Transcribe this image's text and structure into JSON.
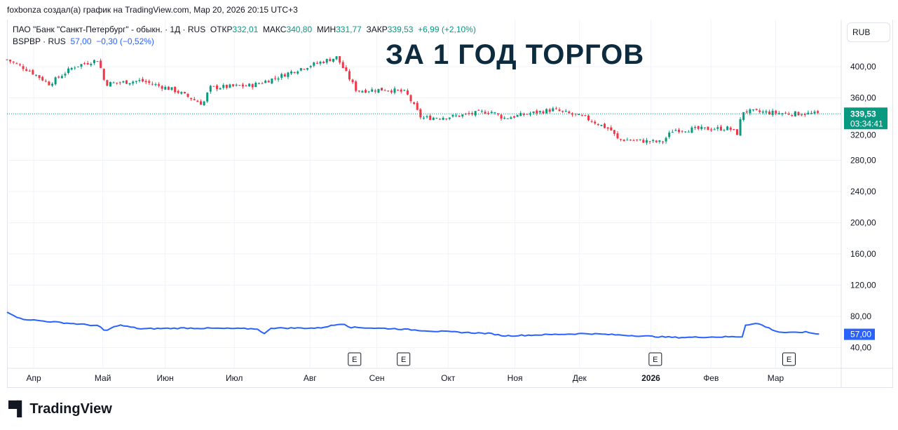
{
  "credit": "foxbonza создал(а) график на TradingView.com, Мар 20, 2026 20:15 UTC+3",
  "legend": {
    "name": "ПАО \"Банк \"Санкт-Петербург\" - обыкн. · 1Д · RUS",
    "open_label": "ОТКР",
    "open": "332,01",
    "high_label": "МАКС",
    "high": "340,80",
    "low_label": "МИН",
    "low": "331,77",
    "close_label": "ЗАКР",
    "close": "339,53",
    "change": "+6,99 (+2,10%)",
    "second_name": "BSPBP · RUS",
    "second_value": "57,00",
    "second_change": "−0,30 (−0,52%)"
  },
  "overlay_title": "ЗА 1 ГОД ТОРГОВ",
  "currency": "RUB",
  "price_tag": "339,53",
  "countdown": "03:34:41",
  "line_tag": "57,00",
  "logo": "TradingView",
  "colors": {
    "up": "#089981",
    "down": "#f23645",
    "line": "#2962ff"
  },
  "chart_data": {
    "type": "candlestick+line",
    "ylim": [
      20,
      420
    ],
    "y_ticks": [
      "400,00",
      "360,00",
      "320,00",
      "280,00",
      "240,00",
      "200,00",
      "160,00",
      "120,00",
      "80,00",
      "40,00"
    ],
    "y_tick_values": [
      400,
      360,
      320,
      280,
      240,
      200,
      160,
      120,
      80,
      40
    ],
    "x_ticks": [
      {
        "day": 12,
        "label": "Апр"
      },
      {
        "day": 43,
        "label": "Май"
      },
      {
        "day": 71,
        "label": "Июн"
      },
      {
        "day": 102,
        "label": "Июл"
      },
      {
        "day": 136,
        "label": "Авг"
      },
      {
        "day": 166,
        "label": "Сен"
      },
      {
        "day": 198,
        "label": "Окт"
      },
      {
        "day": 228,
        "label": "Ноя"
      },
      {
        "day": 257,
        "label": "Дек"
      },
      {
        "day": 289,
        "label": "2026"
      },
      {
        "day": 316,
        "label": "Фев"
      },
      {
        "day": 345,
        "label": "Мар"
      }
    ],
    "events": [
      {
        "day": 156,
        "label": "E"
      },
      {
        "day": 178,
        "label": "E"
      },
      {
        "day": 291,
        "label": "E"
      },
      {
        "day": 351,
        "label": "E"
      }
    ],
    "price_series": {
      "name": "BSPB",
      "points": [
        [
          0,
          409
        ],
        [
          10,
          395
        ],
        [
          19,
          378
        ],
        [
          30,
          400
        ],
        [
          41,
          409
        ],
        [
          44,
          378
        ],
        [
          60,
          382
        ],
        [
          75,
          370
        ],
        [
          88,
          352
        ],
        [
          91,
          373
        ],
        [
          110,
          376
        ],
        [
          120,
          385
        ],
        [
          132,
          398
        ],
        [
          148,
          412
        ],
        [
          157,
          369
        ],
        [
          170,
          371
        ],
        [
          179,
          367
        ],
        [
          186,
          334
        ],
        [
          200,
          336
        ],
        [
          217,
          343
        ],
        [
          223,
          334
        ],
        [
          245,
          345
        ],
        [
          260,
          334
        ],
        [
          271,
          319
        ],
        [
          274,
          307
        ],
        [
          294,
          303
        ],
        [
          299,
          319
        ],
        [
          324,
          321
        ],
        [
          328,
          314
        ],
        [
          330,
          343
        ],
        [
          350,
          340
        ],
        [
          365,
          339.53
        ]
      ]
    },
    "line_series": {
      "name": "BSPBP",
      "points": [
        [
          0,
          86
        ],
        [
          6,
          77
        ],
        [
          16,
          74
        ],
        [
          41,
          68
        ],
        [
          44,
          61
        ],
        [
          50,
          69
        ],
        [
          60,
          64
        ],
        [
          80,
          65
        ],
        [
          113,
          64
        ],
        [
          115,
          56
        ],
        [
          118,
          65
        ],
        [
          140,
          65
        ],
        [
          151,
          71
        ],
        [
          154,
          66
        ],
        [
          175,
          64
        ],
        [
          192,
          61
        ],
        [
          217,
          58
        ],
        [
          223,
          55
        ],
        [
          260,
          58
        ],
        [
          300,
          53
        ],
        [
          330,
          54
        ],
        [
          331,
          69
        ],
        [
          337,
          71
        ],
        [
          346,
          60
        ],
        [
          352,
          59
        ],
        [
          358,
          60
        ],
        [
          365,
          57
        ]
      ]
    }
  }
}
